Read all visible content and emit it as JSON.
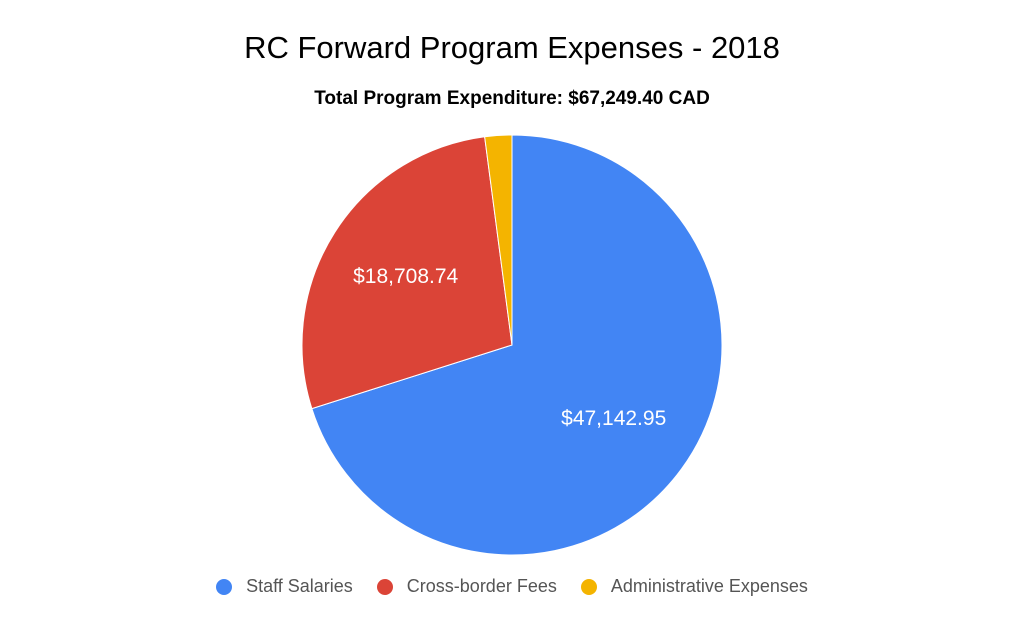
{
  "chart_data": {
    "type": "pie",
    "title": "RC Forward Program Expenses - 2018",
    "subtitle": "Total Program Expenditure: $67,249.40 CAD",
    "legend_position": "bottom",
    "slices": [
      {
        "name": "Staff Salaries",
        "value": 47142.95,
        "label": "$47,142.95",
        "color": "#4285f4"
      },
      {
        "name": "Cross-border Fees",
        "value": 18708.74,
        "label": "$18,708.74",
        "color": "#db4437"
      },
      {
        "name": "Administrative Expenses",
        "value": 1397.71,
        "label": "",
        "color": "#f4b400"
      }
    ]
  }
}
